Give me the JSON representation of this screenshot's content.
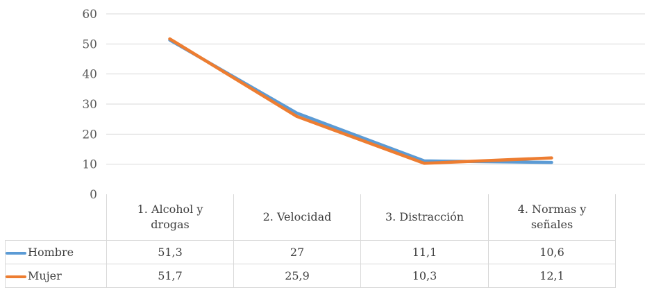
{
  "chart_data": {
    "type": "line",
    "categories": [
      "1. Alcohol y drogas",
      "2. Velocidad",
      "3. Distracción",
      "4. Normas y señales"
    ],
    "series": [
      {
        "name": "Hombre",
        "values": [
          51.3,
          27,
          11.1,
          10.6
        ],
        "labels": [
          "51,3",
          "27",
          "11,1",
          "10,6"
        ],
        "color": "#5b9bd5"
      },
      {
        "name": "Mujer",
        "values": [
          51.7,
          25.9,
          10.3,
          12.1
        ],
        "labels": [
          "51,7",
          "25,9",
          "10,3",
          "12,1"
        ],
        "color": "#ed7d31"
      }
    ],
    "y_ticks": [
      "0",
      "10",
      "20",
      "30",
      "40",
      "50",
      "60"
    ],
    "ylim": [
      0,
      60
    ],
    "grid": true,
    "legend": "data-table"
  }
}
